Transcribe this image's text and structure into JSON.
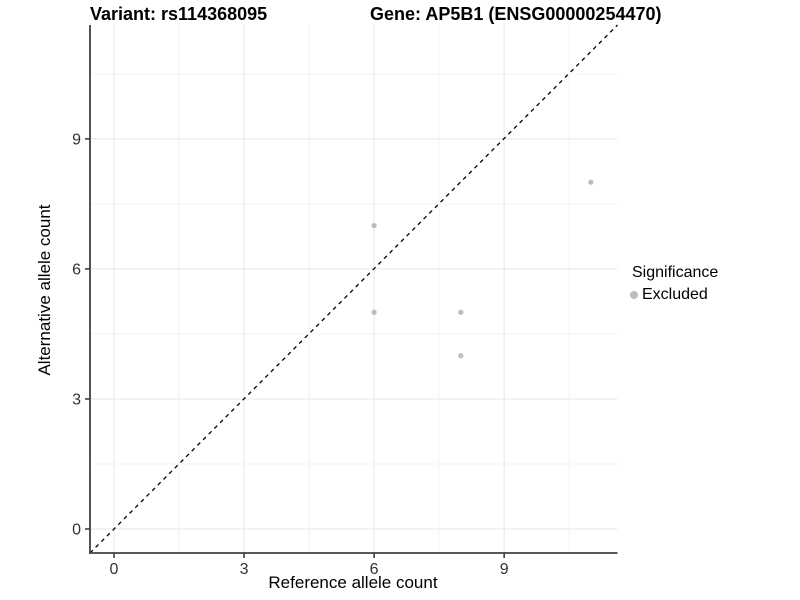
{
  "chart_data": {
    "type": "scatter",
    "title_left": "Variant: rs114368095",
    "title_right": "Gene: AP5B1 (ENSG00000254470)",
    "xlabel": "Reference allele count",
    "ylabel": "Alternative allele count",
    "x_ticks": [
      0,
      3,
      6,
      9
    ],
    "y_ticks": [
      0,
      3,
      6,
      9
    ],
    "x_minor": [
      1.5,
      4.5,
      7.5,
      10.5
    ],
    "y_minor": [
      1.5,
      4.5,
      7.5,
      10.5
    ],
    "xlim": [
      -0.55,
      11.6
    ],
    "ylim": [
      -0.55,
      11.6
    ],
    "grid": true,
    "series": [
      {
        "name": "Excluded",
        "color": "#bdbdbd",
        "points": [
          {
            "x": 6,
            "y": 7
          },
          {
            "x": 6,
            "y": 5
          },
          {
            "x": 8,
            "y": 5
          },
          {
            "x": 8,
            "y": 4
          },
          {
            "x": 11,
            "y": 8
          }
        ]
      }
    ],
    "reference_line": {
      "type": "identity",
      "style": "dashed",
      "color": "#000000"
    },
    "legend": {
      "title": "Significance",
      "position": "right",
      "items": [
        {
          "label": "Excluded",
          "color": "#bdbdbd"
        }
      ]
    },
    "colors": {
      "point": "#bdbdbd",
      "grid_major": "#e7e7e7",
      "grid_minor": "#f3f3f3",
      "axis": "#404040",
      "tick": "#333333",
      "tick_label": "#333333"
    }
  }
}
